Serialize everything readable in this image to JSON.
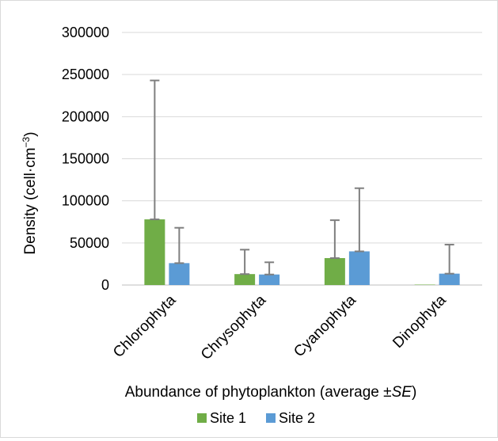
{
  "chart_data": {
    "type": "bar",
    "title": "",
    "ylabel": "Density (cell·cm",
    "ylabel_sup": "−3",
    "ylabel_close": ")",
    "xlabel_prefix": "Abundance of phytoplankton (average ±",
    "xlabel_italic": "SE",
    "xlabel_suffix": ")",
    "categories": [
      "Chlorophyta",
      "Chrysophyta",
      "Cyanophyta",
      "Dinophyta"
    ],
    "series": [
      {
        "name": "Site 1",
        "color": "#70ad47",
        "values": [
          78000,
          13000,
          32000,
          500
        ],
        "error_upper": [
          243000,
          42000,
          77000,
          500
        ]
      },
      {
        "name": "Site 2",
        "color": "#5b9bd5",
        "values": [
          26000,
          12500,
          40000,
          13500
        ],
        "error_upper": [
          68000,
          27000,
          115000,
          48000
        ]
      }
    ],
    "yticks": [
      "0",
      "50000",
      "100000",
      "150000",
      "200000",
      "250000",
      "300000"
    ],
    "ylim": [
      0,
      300000
    ],
    "grid": true,
    "legend_position": "bottom",
    "error_bar_color": "#7f7f7f"
  }
}
